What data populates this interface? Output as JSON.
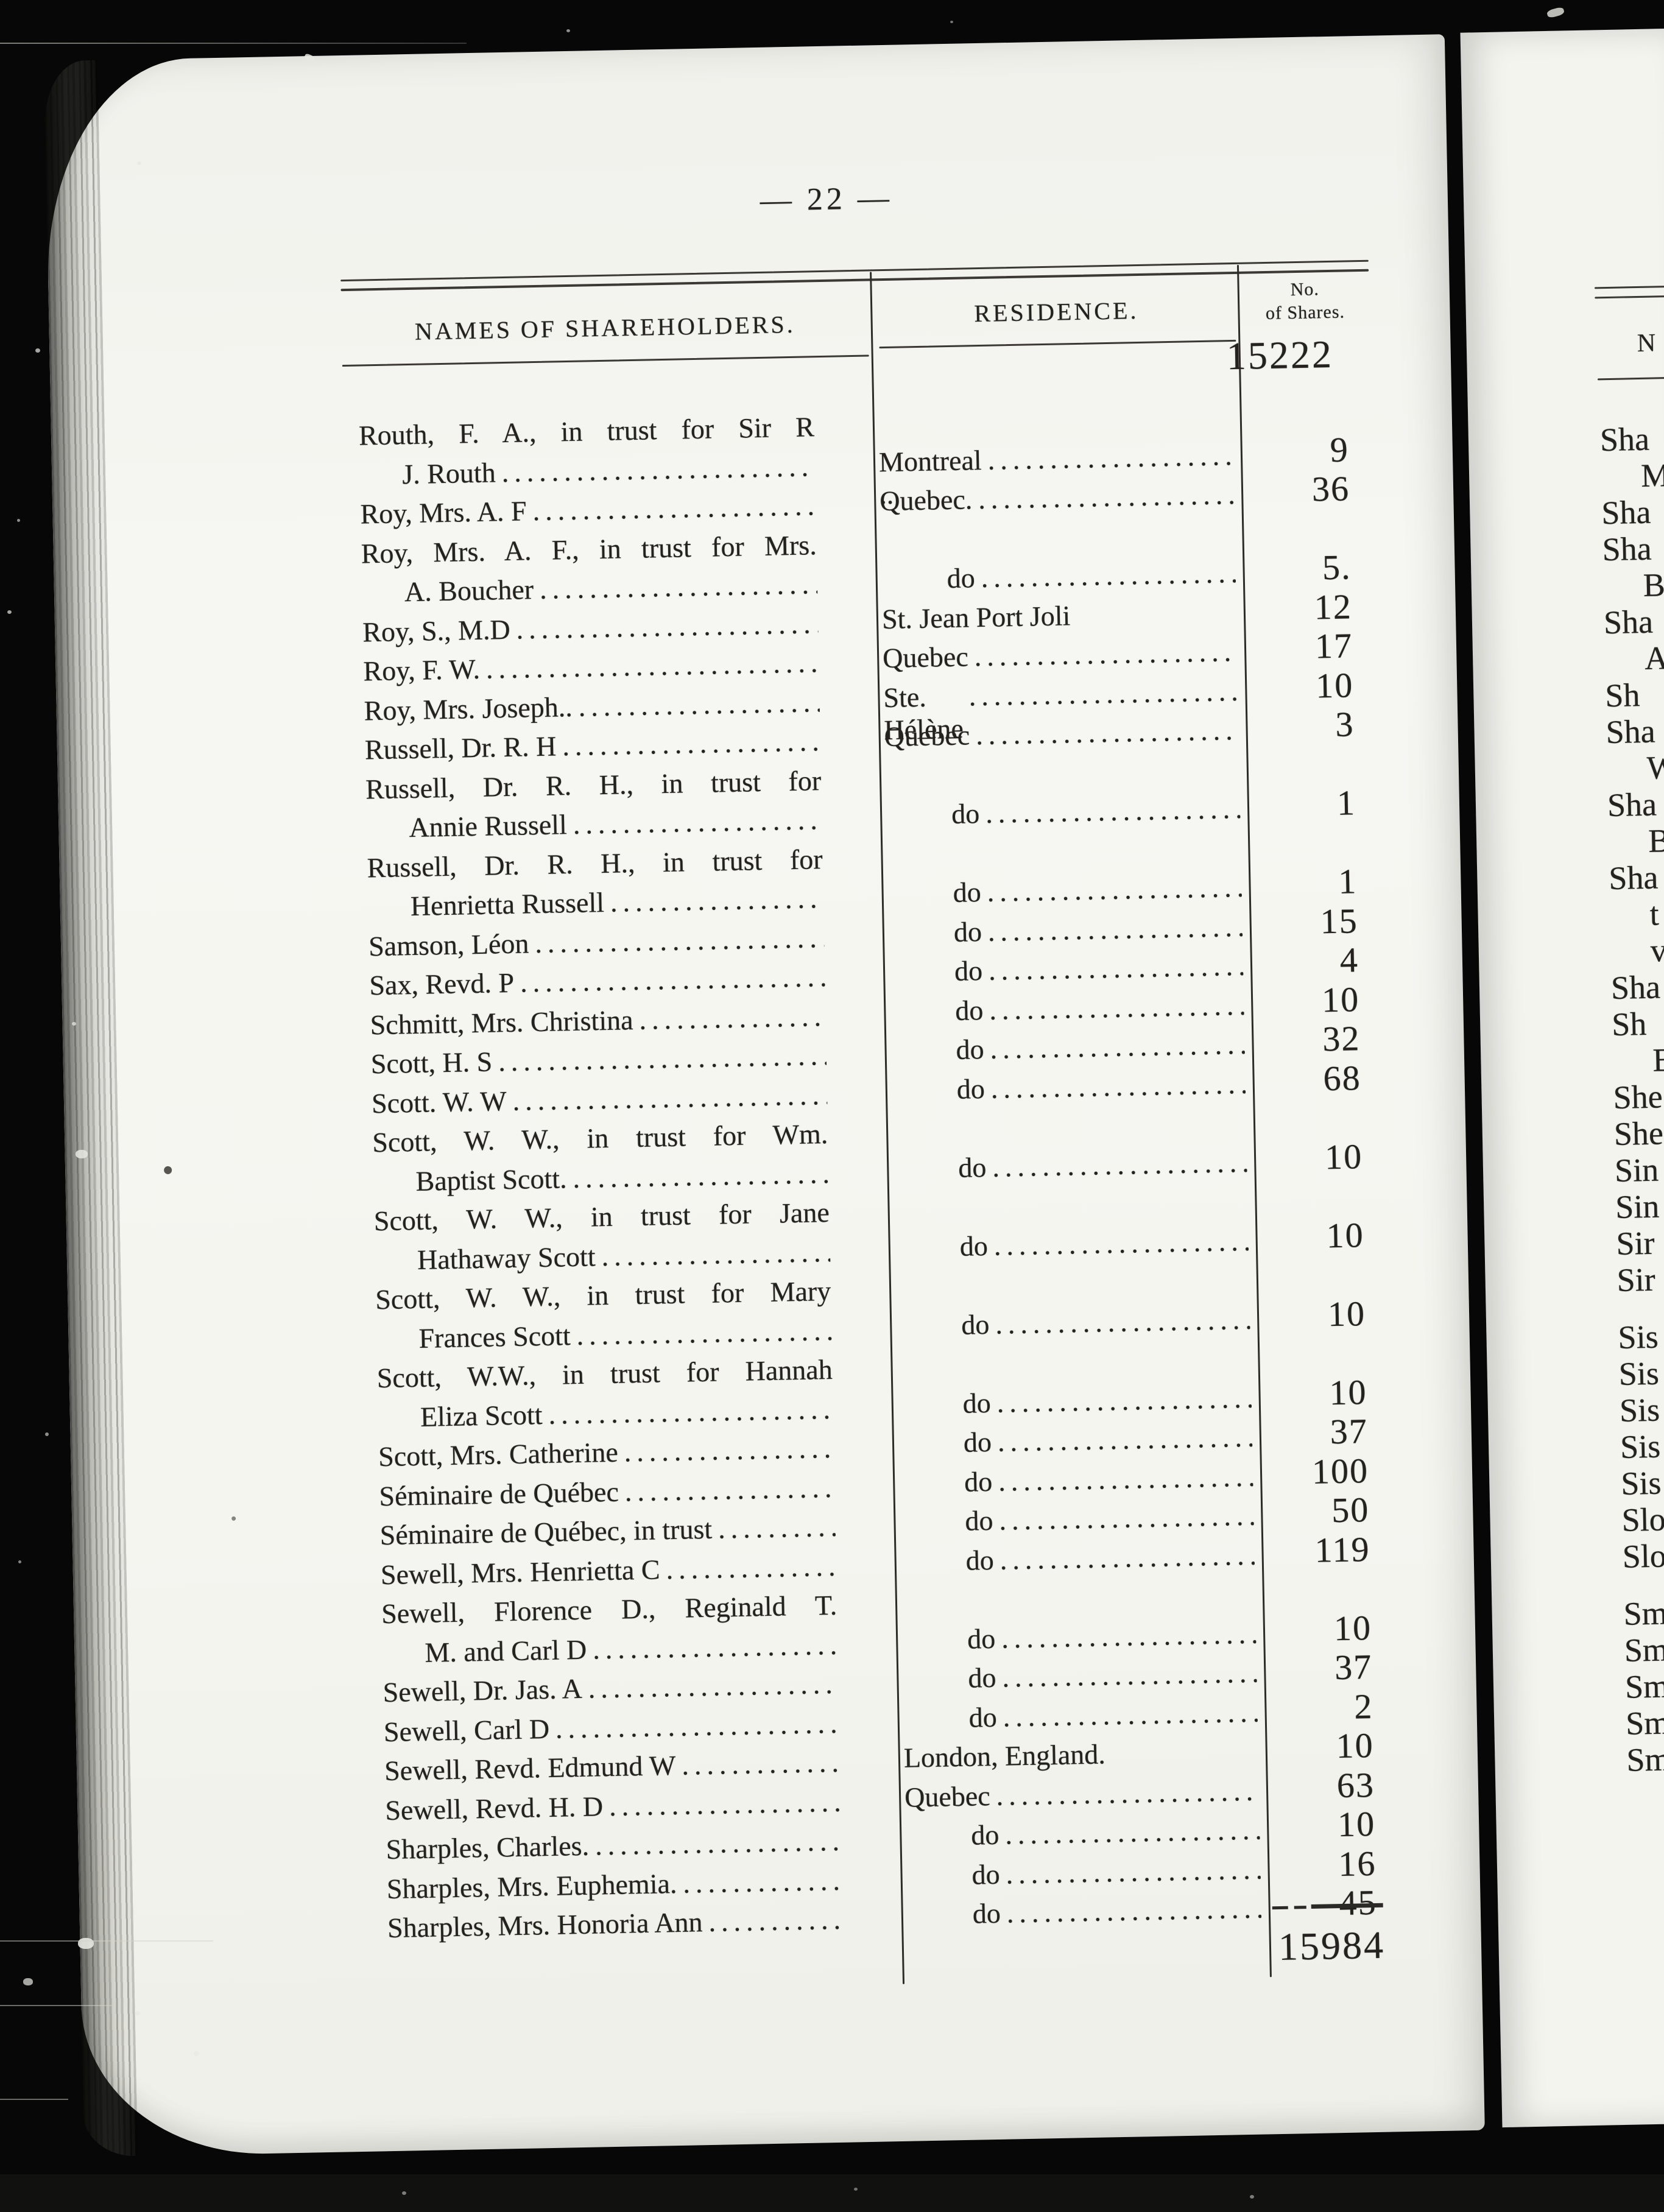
{
  "page_label": "— 22 —",
  "table": {
    "headers": {
      "names": "NAMES OF SHAREHOLDERS.",
      "residence": "RESIDENCE.",
      "shares_line1": "No.",
      "shares_line2": "of Shares."
    },
    "brought_forward": "15222",
    "total": "15984",
    "rows": [
      {
        "name_lines": [
          "Routh, F. A., in trust for Sir R",
          "J. Routh"
        ],
        "residence": "Montreal ..",
        "residence_leader": true,
        "shares": "9"
      },
      {
        "name_lines": [
          "Roy, Mrs. A. F"
        ],
        "residence": "Quebec.",
        "residence_leader": true,
        "shares": "36"
      },
      {
        "name_lines": [
          "Roy, Mrs. A. F., in trust for Mrs.",
          "A. Boucher"
        ],
        "residence": "do",
        "residence_leader": true,
        "shares": "5."
      },
      {
        "name_lines": [
          "Roy, S., M.D"
        ],
        "residence": "St. Jean Port Joli",
        "residence_leader": false,
        "shares": "12"
      },
      {
        "name_lines": [
          "Roy, F. W. "
        ],
        "residence": "Quebec",
        "residence_leader": true,
        "shares": "17"
      },
      {
        "name_lines": [
          "Roy, Mrs. Joseph.."
        ],
        "residence": "Ste. Hélène",
        "residence_leader": true,
        "shares": "10"
      },
      {
        "name_lines": [
          "Russell, Dr. R. H"
        ],
        "residence": "Quebec",
        "residence_leader": true,
        "shares": "3"
      },
      {
        "name_lines": [
          "Russell, Dr. R. H., in trust for",
          "Annie Russell"
        ],
        "residence": "do",
        "residence_leader": true,
        "shares": "1"
      },
      {
        "name_lines": [
          "Russell, Dr. R. H., in trust for",
          "Henrietta Russell"
        ],
        "residence": "do",
        "residence_leader": true,
        "shares": "1"
      },
      {
        "name_lines": [
          "Samson, Léon"
        ],
        "residence": "do",
        "residence_leader": true,
        "shares": "15"
      },
      {
        "name_lines": [
          "Sax, Revd. P"
        ],
        "residence": "do",
        "residence_leader": true,
        "shares": "4"
      },
      {
        "name_lines": [
          "Schmitt, Mrs. Christina"
        ],
        "residence": "do",
        "residence_leader": true,
        "shares": "10"
      },
      {
        "name_lines": [
          "Scott, H. S"
        ],
        "residence": "do",
        "residence_leader": true,
        "shares": "32"
      },
      {
        "name_lines": [
          "Scott. W. W"
        ],
        "residence": "do",
        "residence_leader": true,
        "shares": "68"
      },
      {
        "name_lines": [
          "Scott, W. W., in trust for Wm.",
          "Baptist Scott."
        ],
        "residence": "do",
        "residence_leader": true,
        "shares": "10"
      },
      {
        "name_lines": [
          "Scott, W. W., in trust for Jane",
          "Hathaway Scott"
        ],
        "residence": "do",
        "residence_leader": true,
        "shares": "10"
      },
      {
        "name_lines": [
          "Scott, W. W., in trust for Mary",
          "Frances Scott"
        ],
        "residence": "do",
        "residence_leader": true,
        "shares": "10"
      },
      {
        "name_lines": [
          "Scott, W.W., in trust for Hannah",
          "Eliza Scott"
        ],
        "residence": "do",
        "residence_leader": true,
        "shares": "10"
      },
      {
        "name_lines": [
          "Scott, Mrs. Catherine "
        ],
        "residence": "do",
        "residence_leader": true,
        "shares": "37"
      },
      {
        "name_lines": [
          "Séminaire de Québec "
        ],
        "residence": "do",
        "residence_leader": true,
        "shares": "100"
      },
      {
        "name_lines": [
          "Séminaire de Québec, in trust"
        ],
        "residence": "do",
        "residence_leader": true,
        "shares": "50"
      },
      {
        "name_lines": [
          "Sewell, Mrs. Henrietta C"
        ],
        "residence": "do",
        "residence_leader": true,
        "shares": "119"
      },
      {
        "name_lines": [
          "Sewell, Florence D., Reginald T.",
          "M. and Carl D"
        ],
        "residence": "do",
        "residence_leader": true,
        "shares": "10"
      },
      {
        "name_lines": [
          "Sewell, Dr. Jas. A"
        ],
        "residence": "do",
        "residence_leader": true,
        "shares": "37"
      },
      {
        "name_lines": [
          "Sewell, Carl D"
        ],
        "residence": "do",
        "residence_leader": true,
        "shares": "2"
      },
      {
        "name_lines": [
          "Sewell, Revd. Edmund W"
        ],
        "residence": "London, England.",
        "residence_leader": false,
        "shares": "10"
      },
      {
        "name_lines": [
          "Sewell, Revd. H. D"
        ],
        "residence": "Quebec",
        "residence_leader": true,
        "shares": "63"
      },
      {
        "name_lines": [
          "Sharples, Charles."
        ],
        "residence": "do",
        "residence_leader": true,
        "shares": "10"
      },
      {
        "name_lines": [
          "Sharples, Mrs. Euphemia. "
        ],
        "residence": "do",
        "residence_leader": true,
        "shares": "16"
      },
      {
        "name_lines": [
          "Sharples, Mrs. Honoria Ann"
        ],
        "residence": "do",
        "residence_leader": true,
        "shares": "45"
      }
    ]
  },
  "right_page": {
    "header_fragment": "N",
    "fragments": [
      {
        "text": "Sha",
        "indent": false,
        "gap_before": false
      },
      {
        "text": "M",
        "indent": true,
        "gap_before": false
      },
      {
        "text": "Sha",
        "indent": false,
        "gap_before": false
      },
      {
        "text": "Sha",
        "indent": false,
        "gap_before": false
      },
      {
        "text": "B",
        "indent": true,
        "gap_before": false
      },
      {
        "text": "Sha",
        "indent": false,
        "gap_before": false
      },
      {
        "text": "A",
        "indent": true,
        "gap_before": false
      },
      {
        "text": "Sh",
        "indent": false,
        "gap_before": false
      },
      {
        "text": "Sha",
        "indent": false,
        "gap_before": false
      },
      {
        "text": "W",
        "indent": true,
        "gap_before": false
      },
      {
        "text": "Sha",
        "indent": false,
        "gap_before": false
      },
      {
        "text": "B",
        "indent": true,
        "gap_before": false
      },
      {
        "text": "Sha",
        "indent": false,
        "gap_before": false
      },
      {
        "text": "t",
        "indent": true,
        "gap_before": false
      },
      {
        "text": "v",
        "indent": true,
        "gap_before": false
      },
      {
        "text": "Sha",
        "indent": false,
        "gap_before": false
      },
      {
        "text": "Sh",
        "indent": false,
        "gap_before": false
      },
      {
        "text": "B",
        "indent": true,
        "gap_before": false
      },
      {
        "text": "She",
        "indent": false,
        "gap_before": false
      },
      {
        "text": "She",
        "indent": false,
        "gap_before": false
      },
      {
        "text": "Sin",
        "indent": false,
        "gap_before": false
      },
      {
        "text": "Sin",
        "indent": false,
        "gap_before": false
      },
      {
        "text": "Sir",
        "indent": false,
        "gap_before": false
      },
      {
        "text": "Sir",
        "indent": false,
        "gap_before": false
      },
      {
        "text": "Sis",
        "indent": false,
        "gap_before": true
      },
      {
        "text": "Sis",
        "indent": false,
        "gap_before": false
      },
      {
        "text": "Sis",
        "indent": false,
        "gap_before": false
      },
      {
        "text": "Sis",
        "indent": false,
        "gap_before": false
      },
      {
        "text": "Sis",
        "indent": false,
        "gap_before": false
      },
      {
        "text": "Slo",
        "indent": false,
        "gap_before": false
      },
      {
        "text": "Slo",
        "indent": false,
        "gap_before": false
      },
      {
        "text": "Sm",
        "indent": false,
        "gap_before": true
      },
      {
        "text": "Sm",
        "indent": false,
        "gap_before": false
      },
      {
        "text": "Sm",
        "indent": false,
        "gap_before": false
      },
      {
        "text": "Sm",
        "indent": false,
        "gap_before": false
      },
      {
        "text": "Sm",
        "indent": false,
        "gap_before": false
      }
    ]
  }
}
